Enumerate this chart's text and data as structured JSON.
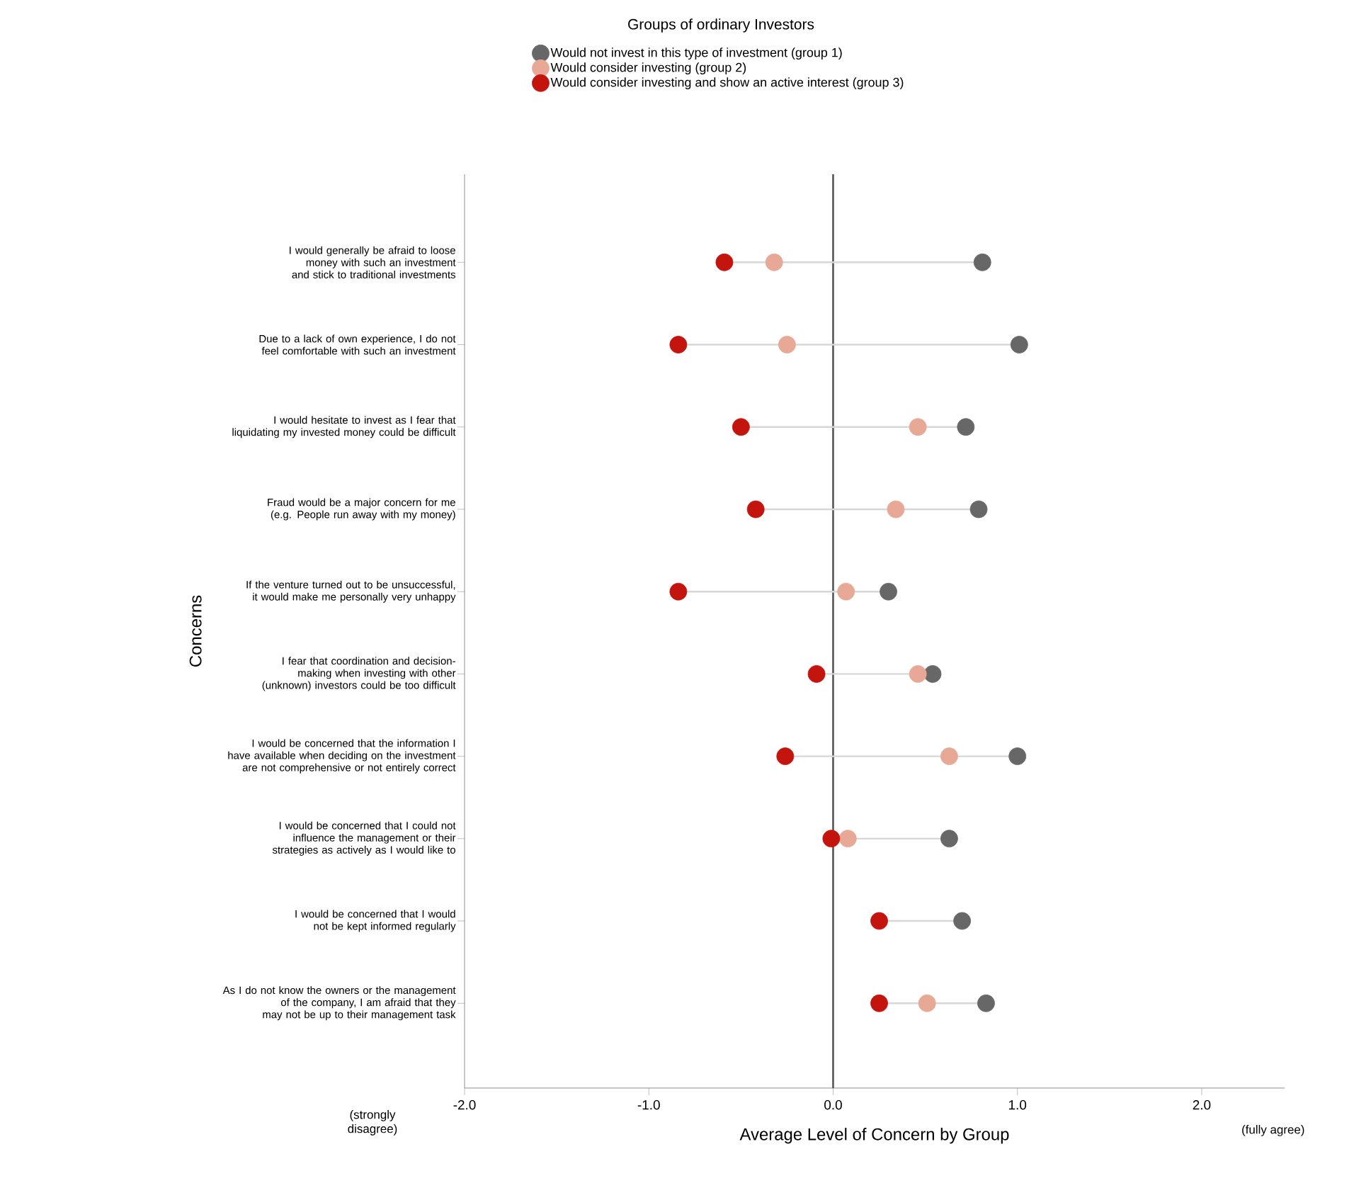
{
  "chart_data": {
    "type": "scatter",
    "orientation": "horizontal",
    "legend_title": "Groups of ordinary Investors",
    "xlabel": "Average Level of Concern by Group",
    "ylabel": "Concerns",
    "categories": [
      "I would generally be afraid to loose money with such an investment and stick to traditional investments",
      "Due to a lack of own experience, I do not feel comfortable with such an investment",
      "I would hesitate to invest as I fear that liquidating my invested money could be difficult",
      "Fraud would be a major concern for me (e.g. People run away with my money)",
      "If the venture turned out to be unsuccessful, it would make me personally very unhappy",
      "I fear that coordination and decision-making when investing with other (unknown) investors could be too difficult",
      "I would be concerned that the information I have available when deciding on the investment are not comprehensive or not entirely correct",
      "I would be concerned that I could not influence the management or their strategies as actively as I would like to",
      "I would be concerned that I would not be kept informed regularly",
      "As I do not know the owners or the management of the company, I am afraid that they may not be up to their management task"
    ],
    "series": [
      {
        "name": "Would not invest in this type of investment (group 1)",
        "color": "#676767",
        "values": [
          0.81,
          1.01,
          0.72,
          0.79,
          0.3,
          0.54,
          1.0,
          0.63,
          0.7,
          0.83
        ]
      },
      {
        "name": "Would consider investing (group 2)",
        "color": "#e8a896",
        "values": [
          -0.32,
          -0.25,
          0.46,
          0.34,
          0.07,
          0.46,
          0.63,
          0.08,
          null,
          0.51
        ]
      },
      {
        "name": "Would consider investing and show an active interest (group 3)",
        "color": "#c4140e",
        "values": [
          -0.59,
          -0.84,
          -0.5,
          -0.42,
          -0.84,
          -0.09,
          -0.26,
          -0.01,
          0.25,
          0.25
        ]
      }
    ],
    "xlim": [
      -2.0,
      2.45
    ],
    "xticks": [
      {
        "value": -2,
        "label": "-2.0"
      },
      {
        "value": -1,
        "label": "-1.0"
      },
      {
        "value": 0,
        "label": "0.0"
      },
      {
        "value": 1,
        "label": "1.0"
      },
      {
        "value": 2,
        "label": "2.0"
      }
    ],
    "ref_lines": [
      {
        "axis": "x",
        "value": 0,
        "color": "#555555"
      }
    ],
    "annotations": [
      "(strongly disagree)",
      "(fully agree)"
    ],
    "legend": "top",
    "marker": "circle",
    "grid": false
  }
}
